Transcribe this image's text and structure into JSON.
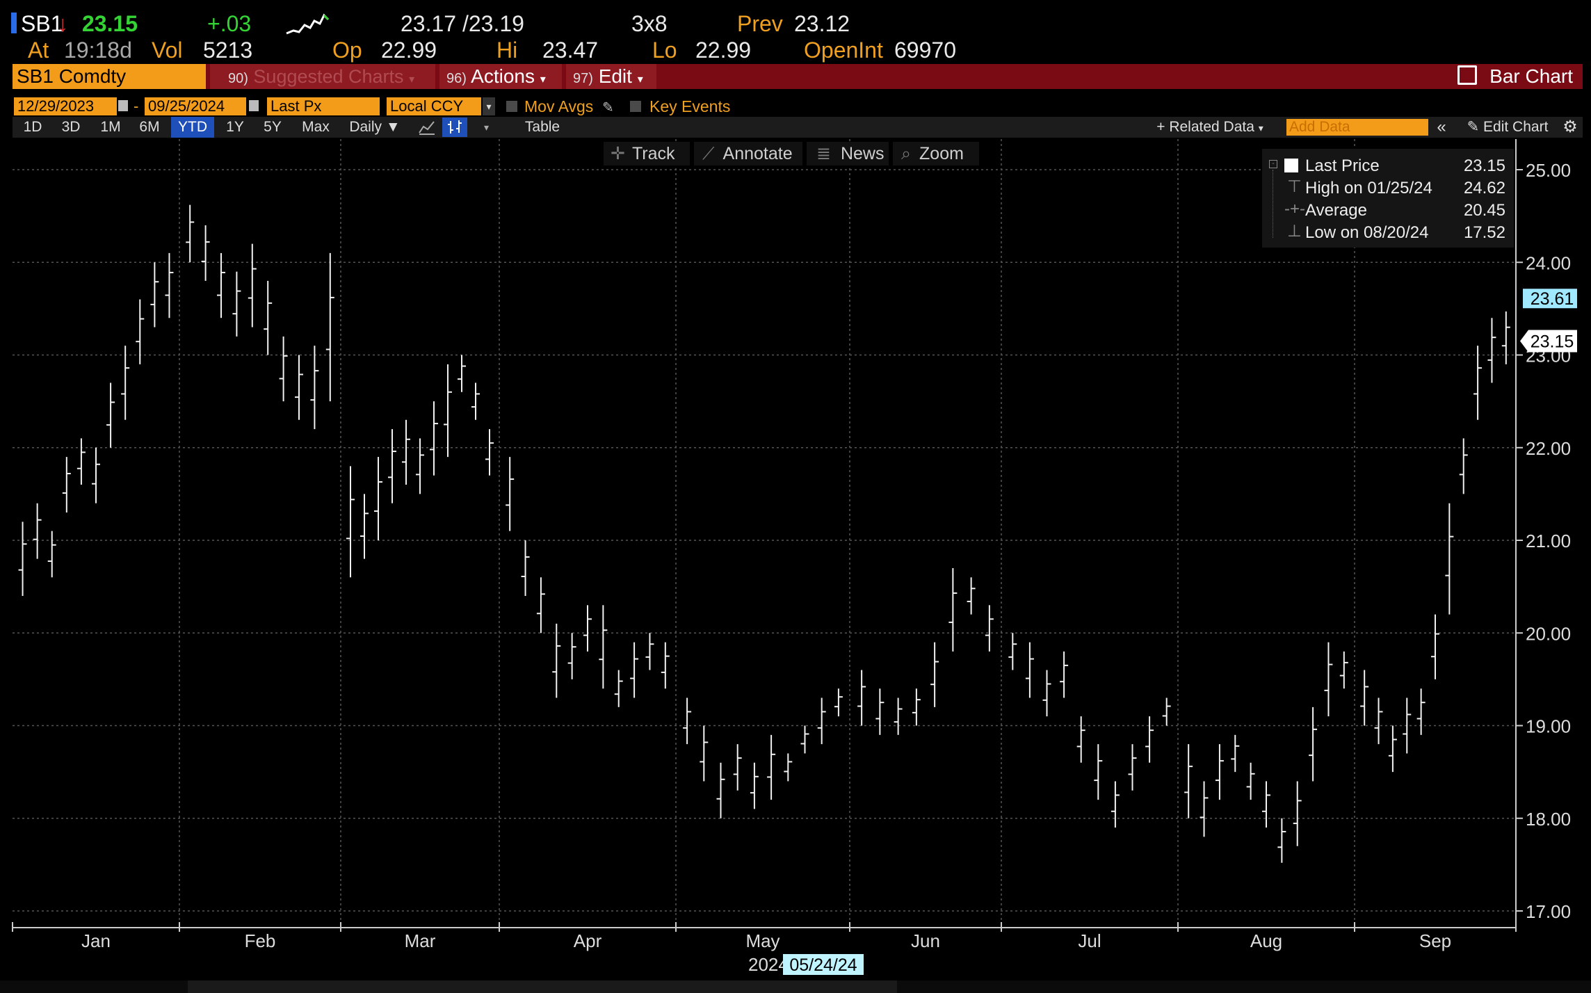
{
  "quote": {
    "ticker": "SB1",
    "last": "23.15",
    "change": "+.03",
    "bid_ask": "23.17 /23.19",
    "size": "3x8",
    "prev_label": "Prev",
    "prev": "23.12",
    "at_label": "At",
    "at_time": "19:18d",
    "vol_label": "Vol",
    "vol": "5213",
    "op_label": "Op",
    "op": "22.99",
    "hi_label": "Hi",
    "hi": "23.47",
    "lo_label": "Lo",
    "lo": "22.99",
    "oi_label": "OpenInt",
    "oi": "69970"
  },
  "menubar": {
    "security": "SB1 Comdty",
    "suggested_num": "90)",
    "suggested": "Suggested Charts",
    "actions_num": "96)",
    "actions": "Actions",
    "edit_num": "97)",
    "edit": "Edit",
    "chart_type": "Bar Chart"
  },
  "controls": {
    "start_date": "12/29/2023",
    "end_date": "09/25/2024",
    "field": "Last Px",
    "currency": "Local CCY",
    "mov_avgs": "Mov Avgs",
    "key_events": "Key Events",
    "ranges": [
      "1D",
      "3D",
      "1M",
      "6M",
      "YTD",
      "1Y",
      "5Y",
      "Max"
    ],
    "selected_range": "YTD",
    "frequency": "Daily",
    "table": "Table",
    "related_data": "Related Data",
    "add_data": "Add Data",
    "edit_chart": "Edit Chart"
  },
  "toolbar": {
    "track": "Track",
    "annotate": "Annotate",
    "news": "News",
    "zoom": "Zoom"
  },
  "legend": [
    {
      "label": "Last Price",
      "value": "23.15"
    },
    {
      "label": "High on 01/25/24",
      "value": "24.62"
    },
    {
      "label": "Average",
      "value": "20.45"
    },
    {
      "label": "Low on 08/20/24",
      "value": "17.52"
    }
  ],
  "chart_data": {
    "type": "bar",
    "style": "ohlc",
    "ylim": [
      17.0,
      25.0
    ],
    "y_ticks": [
      "25.00",
      "24.00",
      "23.00",
      "22.00",
      "21.00",
      "20.00",
      "19.00",
      "18.00",
      "17.00"
    ],
    "x_labels": [
      "Jan",
      "Feb",
      "Mar",
      "Apr",
      "May",
      "Jun",
      "Jul",
      "Aug",
      "Sep"
    ],
    "year_label": "2024",
    "cursor_date": "05/24/24",
    "price_markers": [
      {
        "value": 23.61,
        "label": "23.61",
        "color": "#9fe8ff"
      },
      {
        "value": 23.15,
        "label": "23.15",
        "color": "#ffffff"
      }
    ],
    "grid": true,
    "points": [
      {
        "month": 0,
        "segments": [
          [
            20.4,
            21.2
          ],
          [
            20.8,
            21.4
          ],
          [
            20.6,
            21.1
          ],
          [
            21.3,
            21.9
          ],
          [
            21.6,
            22.1
          ],
          [
            21.4,
            22.0
          ],
          [
            22.0,
            22.7
          ],
          [
            22.3,
            23.1
          ],
          [
            22.9,
            23.6
          ],
          [
            23.3,
            24.0
          ],
          [
            23.4,
            24.1
          ]
        ]
      },
      {
        "month": 1,
        "segments": [
          [
            24.0,
            24.62
          ],
          [
            23.8,
            24.4
          ],
          [
            23.4,
            24.1
          ],
          [
            23.2,
            23.9
          ],
          [
            23.3,
            24.2
          ],
          [
            23.0,
            23.8
          ],
          [
            22.5,
            23.2
          ],
          [
            22.3,
            23.0
          ],
          [
            22.2,
            23.1
          ],
          [
            22.5,
            24.1
          ]
        ]
      },
      {
        "month": 2,
        "segments": [
          [
            20.6,
            21.8
          ],
          [
            20.8,
            21.5
          ],
          [
            21.0,
            21.9
          ],
          [
            21.4,
            22.2
          ],
          [
            21.6,
            22.3
          ],
          [
            21.5,
            22.1
          ],
          [
            21.7,
            22.5
          ],
          [
            21.9,
            22.9
          ],
          [
            22.6,
            23.0
          ],
          [
            22.3,
            22.7
          ],
          [
            21.7,
            22.2
          ]
        ]
      },
      {
        "month": 3,
        "segments": [
          [
            21.1,
            21.9
          ],
          [
            20.4,
            21.0
          ],
          [
            20.0,
            20.6
          ],
          [
            19.3,
            20.1
          ],
          [
            19.5,
            20.0
          ],
          [
            19.8,
            20.3
          ],
          [
            19.4,
            20.3
          ],
          [
            19.2,
            19.6
          ],
          [
            19.3,
            19.9
          ],
          [
            19.6,
            20.0
          ],
          [
            19.4,
            19.9
          ]
        ]
      },
      {
        "month": 4,
        "segments": [
          [
            18.8,
            19.3
          ],
          [
            18.4,
            19.0
          ],
          [
            18.0,
            18.6
          ],
          [
            18.3,
            18.8
          ],
          [
            18.1,
            18.6
          ],
          [
            18.2,
            18.9
          ],
          [
            18.4,
            18.7
          ],
          [
            18.7,
            19.0
          ],
          [
            18.8,
            19.3
          ],
          [
            19.1,
            19.4
          ]
        ]
      },
      {
        "month": 5,
        "segments": [
          [
            19.0,
            19.6
          ],
          [
            18.9,
            19.4
          ],
          [
            18.9,
            19.3
          ],
          [
            19.0,
            19.4
          ],
          [
            19.2,
            19.9
          ],
          [
            19.8,
            20.7
          ],
          [
            20.2,
            20.6
          ],
          [
            19.8,
            20.3
          ]
        ]
      },
      {
        "month": 6,
        "segments": [
          [
            19.6,
            20.0
          ],
          [
            19.3,
            19.9
          ],
          [
            19.1,
            19.6
          ],
          [
            19.3,
            19.8
          ],
          [
            18.6,
            19.1
          ],
          [
            18.2,
            18.8
          ],
          [
            17.9,
            18.4
          ],
          [
            18.3,
            18.8
          ],
          [
            18.6,
            19.1
          ],
          [
            19.0,
            19.3
          ]
        ]
      },
      {
        "month": 7,
        "segments": [
          [
            18.0,
            18.8
          ],
          [
            17.8,
            18.4
          ],
          [
            18.2,
            18.8
          ],
          [
            18.5,
            18.9
          ],
          [
            18.2,
            18.6
          ],
          [
            17.9,
            18.4
          ],
          [
            17.52,
            18.0
          ],
          [
            17.7,
            18.4
          ],
          [
            18.4,
            19.2
          ],
          [
            19.1,
            19.9
          ],
          [
            19.4,
            19.8
          ]
        ]
      },
      {
        "month": 8,
        "segments": [
          [
            19.0,
            19.6
          ],
          [
            18.8,
            19.3
          ],
          [
            18.5,
            19.0
          ],
          [
            18.7,
            19.3
          ],
          [
            18.9,
            19.4
          ],
          [
            19.5,
            20.2
          ],
          [
            20.2,
            21.4
          ],
          [
            21.5,
            22.1
          ],
          [
            22.3,
            23.1
          ],
          [
            22.7,
            23.4
          ],
          [
            22.9,
            23.47
          ]
        ]
      }
    ]
  }
}
